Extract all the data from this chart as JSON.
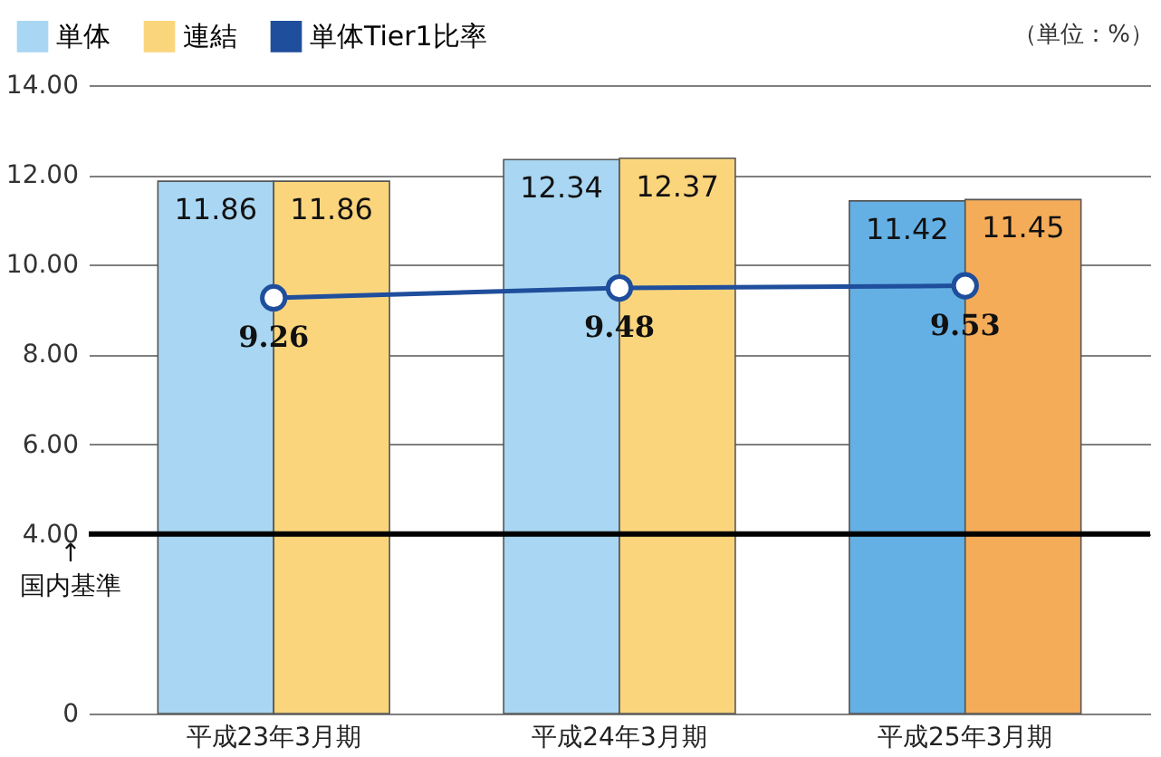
{
  "chart_data": {
    "type": "bar",
    "categories": [
      "平成23年3月期",
      "平成24年3月期",
      "平成25年3月期"
    ],
    "series": [
      {
        "name": "単体",
        "color": "#a9d6f2",
        "colors": [
          "#a9d6f2",
          "#a9d6f2",
          "#64b0e4"
        ],
        "values": [
          11.86,
          12.34,
          11.42
        ]
      },
      {
        "name": "連結",
        "color": "#fbd57c",
        "colors": [
          "#fbd57c",
          "#fbd57c",
          "#f5ac58"
        ],
        "values": [
          11.86,
          12.37,
          11.45
        ]
      },
      {
        "name": "単体Tier1比率",
        "type": "line",
        "color": "#1f4e9c",
        "values": [
          9.26,
          9.48,
          9.53
        ]
      }
    ],
    "ylim": [
      0,
      14
    ],
    "yticks": [
      0,
      {
        "value": 4,
        "label": "4.00"
      },
      {
        "value": 6,
        "label": "6.00"
      },
      {
        "value": 8,
        "label": "8.00"
      },
      {
        "value": 10,
        "label": "10.00"
      },
      {
        "value": 12,
        "label": "12.00"
      },
      {
        "value": 14,
        "label": "14.00"
      }
    ],
    "ref_lines": [
      {
        "axis": "y",
        "value": 4,
        "label": "↑\n国内基準",
        "color": "#000000"
      }
    ],
    "annotations": [
      "（単位：%）"
    ],
    "data_labels": true,
    "grid": "y",
    "legend": "top left",
    "marker": "circle",
    "line_style": "solid"
  }
}
